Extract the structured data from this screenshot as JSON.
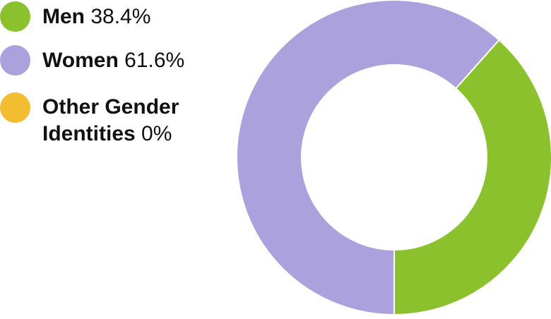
{
  "chart_data": {
    "type": "pie",
    "variant": "donut",
    "title": "",
    "legend_position": "left",
    "slices": [
      {
        "name": "Men",
        "value": 38.4,
        "value_label": "38.4%",
        "color": "#8bc12c"
      },
      {
        "name": "Women",
        "value": 61.6,
        "value_label": "61.6%",
        "color": "#aaa1dd"
      },
      {
        "name": "Other Gender Identities",
        "value": 0,
        "value_label": "0%",
        "color": "#f2bd31"
      }
    ]
  }
}
